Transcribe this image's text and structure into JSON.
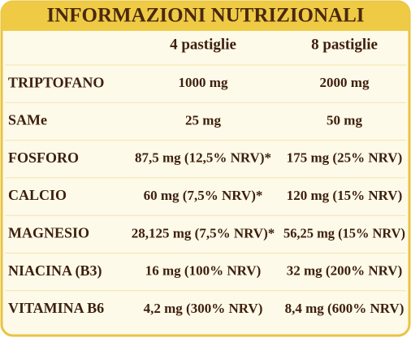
{
  "header": {
    "title": "INFORMAZIONI NUTRIZIONALI"
  },
  "table": {
    "columns": [
      "4 pastiglie",
      "8 pastiglie"
    ],
    "rows": [
      [
        "TRIPTOFANO",
        "1000 mg",
        "2000 mg"
      ],
      [
        "SAMe",
        "25 mg",
        "50 mg"
      ],
      [
        "FOSFORO",
        "87,5 mg (12,5% NRV)*",
        "175 mg (25% NRV)"
      ],
      [
        "CALCIO",
        "60 mg (7,5% NRV)*",
        "120 mg (15% NRV)"
      ],
      [
        "MAGNESIO",
        "28,125 mg (7,5% NRV)*",
        "56,25 mg (15% NRV)"
      ],
      [
        "NIACINA (B3)",
        "16 mg (100% NRV)",
        "32 mg (200% NRV)"
      ],
      [
        "VITAMINA B6",
        "4,2 mg (300% NRV)",
        "8,4 mg (600% NRV)"
      ]
    ]
  }
}
